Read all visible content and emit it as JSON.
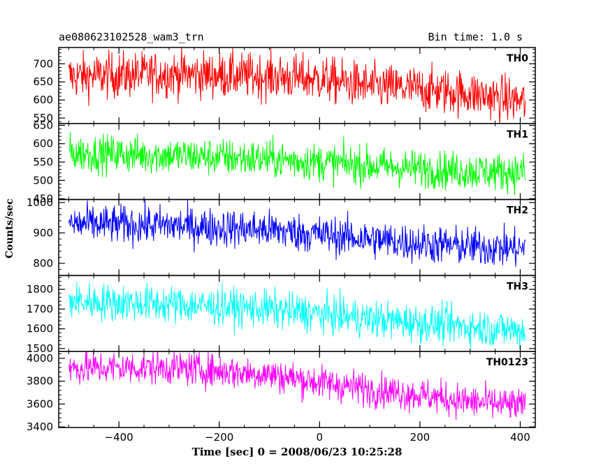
{
  "header": {
    "title": "ae080623102528_wam3_trn",
    "bin_time": "Bin time: 1.0 s"
  },
  "chart_data": {
    "type": "line",
    "xlabel": "Time [sec] 0 = 2008/06/23 10:25:28",
    "ylabel": "Counts/sec",
    "xlim": [
      -520,
      430
    ],
    "x_ticks": [
      -400,
      -200,
      0,
      200,
      400
    ],
    "x_range": [
      -500,
      410
    ],
    "panels": [
      {
        "name": "TH0",
        "color": "#ff0000",
        "ylim": [
          535,
          745
        ],
        "y_ticks": [
          550,
          600,
          650,
          700
        ],
        "trend": [
          [
            -500,
            665
          ],
          [
            -300,
            672
          ],
          [
            -100,
            665
          ],
          [
            0,
            658
          ],
          [
            100,
            638
          ],
          [
            200,
            630
          ],
          [
            300,
            618
          ],
          [
            410,
            595
          ]
        ],
        "noise_sd": 32
      },
      {
        "name": "TH1",
        "color": "#00ff00",
        "ylim": [
          448,
          655
        ],
        "y_ticks": [
          450,
          500,
          550,
          600,
          650
        ],
        "trend": [
          [
            -500,
            575
          ],
          [
            -300,
            568
          ],
          [
            -100,
            558
          ],
          [
            0,
            550
          ],
          [
            100,
            540
          ],
          [
            200,
            532
          ],
          [
            300,
            525
          ],
          [
            410,
            522
          ]
        ],
        "noise_sd": 26
      },
      {
        "name": "TH2",
        "color": "#0000ff",
        "ylim": [
          760,
          1010
        ],
        "y_ticks": [
          800,
          900,
          1000
        ],
        "trend": [
          [
            -500,
            930
          ],
          [
            -300,
            925
          ],
          [
            -100,
            910
          ],
          [
            0,
            895
          ],
          [
            100,
            880
          ],
          [
            200,
            865
          ],
          [
            300,
            855
          ],
          [
            410,
            848
          ]
        ],
        "noise_sd": 32
      },
      {
        "name": "TH3",
        "color": "#00ffff",
        "ylim": [
          1485,
          1870
        ],
        "y_ticks": [
          1500,
          1600,
          1700,
          1800
        ],
        "trend": [
          [
            -500,
            1740
          ],
          [
            -300,
            1725
          ],
          [
            -100,
            1700
          ],
          [
            0,
            1675
          ],
          [
            100,
            1650
          ],
          [
            200,
            1630
          ],
          [
            300,
            1610
          ],
          [
            410,
            1590
          ]
        ],
        "noise_sd": 48
      },
      {
        "name": "TH0123",
        "color": "#ff00ff",
        "ylim": [
          3395,
          4060
        ],
        "y_ticks": [
          3400,
          3600,
          3800,
          4000
        ],
        "trend": [
          [
            -500,
            3915
          ],
          [
            -300,
            3920
          ],
          [
            -100,
            3860
          ],
          [
            0,
            3790
          ],
          [
            100,
            3730
          ],
          [
            200,
            3680
          ],
          [
            300,
            3620
          ],
          [
            410,
            3580
          ]
        ],
        "noise_sd": 75
      }
    ]
  }
}
